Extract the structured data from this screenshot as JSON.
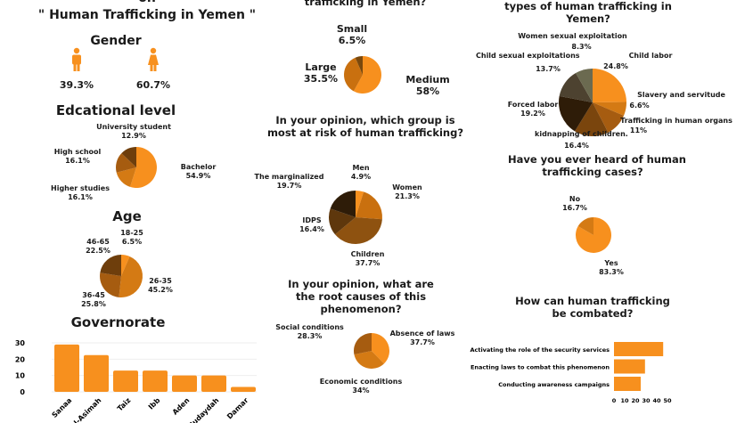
{
  "header": {
    "line1": "on",
    "line2": "\" Human Trafficking in Yemen \""
  },
  "gender": {
    "title": "Gender",
    "male_pct": "39.3%",
    "female_pct": "60.7%"
  },
  "education": {
    "title": "Edcational level"
  },
  "age": {
    "title": "Age"
  },
  "governorate": {
    "title": "Governorate"
  },
  "perception": {
    "title": "trafficking in Yemen?"
  },
  "risk_group": {
    "title_line1": "In your opinion, which group is",
    "title_line2": "most at risk of human trafficking?"
  },
  "root_causes": {
    "title_line1": "In your opinion, what are",
    "title_line2": "the root causes of this",
    "title_line3": "phenomenon?"
  },
  "types": {
    "title_line1": "types of human trafficking in",
    "title_line2": "Yemen?"
  },
  "heard": {
    "title_line1": "Have you ever heard of human",
    "title_line2": "trafficking cases?"
  },
  "combat": {
    "title_line1": "How can human trafficking",
    "title_line2": "be combated?"
  },
  "chart_data": [
    {
      "id": "education",
      "type": "pie",
      "title": "Edcational level",
      "labels": [
        "Bachelor",
        "Higher studies",
        "High school",
        "University student"
      ],
      "values": [
        54.9,
        16.1,
        16.1,
        12.9
      ],
      "display": [
        "54.9%",
        "16.1%",
        "16.1%",
        "12.9%"
      ],
      "colors": [
        "#f7901e",
        "#d47a14",
        "#a65c10",
        "#6e3e0c"
      ]
    },
    {
      "id": "age",
      "type": "pie",
      "title": "Age",
      "labels": [
        "18-25",
        "26-35",
        "36-45",
        "46-65"
      ],
      "values": [
        6.5,
        45.2,
        25.8,
        22.5
      ],
      "display": [
        "6.5%",
        "45.2%",
        "25.8%",
        "22.5%"
      ],
      "colors": [
        "#f7901e",
        "#d47a14",
        "#a65c10",
        "#6e3e0c"
      ]
    },
    {
      "id": "perception",
      "type": "pie",
      "title": "trafficking in Yemen?",
      "labels": [
        "Medium",
        "Large",
        "Small"
      ],
      "values": [
        58,
        35.5,
        6.5
      ],
      "display": [
        "58%",
        "35.5%",
        "6.5%"
      ],
      "colors": [
        "#f7901e",
        "#c9700f",
        "#7a480c"
      ]
    },
    {
      "id": "risk",
      "type": "pie",
      "title": "Which group is most at risk of human trafficking?",
      "labels": [
        "Men",
        "Women",
        "Children",
        "IDPS",
        "The marginalized"
      ],
      "values": [
        4.9,
        21.3,
        37.7,
        16.4,
        19.7
      ],
      "display": [
        "4.9%",
        "21.3%",
        "37.7%",
        "16.4%",
        "19.7%"
      ],
      "colors": [
        "#f7901e",
        "#c9700f",
        "#8e5210",
        "#5e370c",
        "#2e1c08"
      ]
    },
    {
      "id": "types",
      "type": "pie",
      "title": "Types of human trafficking in Yemen?",
      "labels": [
        "Child labor",
        "Slavery and servitude",
        "Trafficking in human organs",
        "kidnapping of children.",
        "Forced labor",
        "Child sexual exploitations",
        "Women sexual exploitation"
      ],
      "values": [
        24.8,
        6.6,
        11,
        16.4,
        19.2,
        13.7,
        8.3
      ],
      "display": [
        "24.8%",
        "6.6%",
        "11%",
        "16.4%",
        "19.2%",
        "13.7%",
        "8.3%"
      ],
      "colors": [
        "#f7901e",
        "#d47a14",
        "#a65c10",
        "#7a450d",
        "#2e1c08",
        "#4d4230",
        "#6b6a50"
      ]
    },
    {
      "id": "heard",
      "type": "pie",
      "title": "Have you ever heard of human trafficking cases?",
      "labels": [
        "Yes",
        "No"
      ],
      "values": [
        83.3,
        16.7
      ],
      "display": [
        "83.3%",
        "16.7%"
      ],
      "colors": [
        "#f7901e",
        "#d47a14"
      ]
    },
    {
      "id": "root",
      "type": "pie",
      "title": "What are the root causes of this phenomenon?",
      "labels": [
        "Absence of laws",
        "Economic conditions",
        "Social conditions"
      ],
      "values": [
        37.7,
        34,
        28.3
      ],
      "display": [
        "37.7%",
        "34%",
        "28.3%"
      ],
      "colors": [
        "#f7901e",
        "#d47a14",
        "#a65c10"
      ]
    },
    {
      "id": "governorate",
      "type": "bar",
      "title": "Governorate",
      "categories": [
        "Sanaa",
        "Al-Asimah",
        "Taiz",
        "Ibb",
        "Aden",
        "Hudaydah",
        "Damar"
      ],
      "values": [
        29,
        22.5,
        13,
        13,
        10,
        10,
        3
      ],
      "ylim": [
        0,
        30
      ],
      "yticks": [
        "0",
        "10",
        "20",
        "30"
      ],
      "color": "#f7901e"
    },
    {
      "id": "combat",
      "type": "bar-horizontal",
      "title": "How can human trafficking be combated?",
      "categories": [
        "Activating the role of the security services",
        "Enacting laws to combat this phenomenon",
        "Conducting awareness campaigns"
      ],
      "values": [
        46,
        29,
        25
      ],
      "xlim": [
        0,
        50
      ],
      "xticks": [
        "0",
        "10",
        "20",
        "30",
        "40",
        "50"
      ],
      "color": "#f7901e"
    }
  ]
}
